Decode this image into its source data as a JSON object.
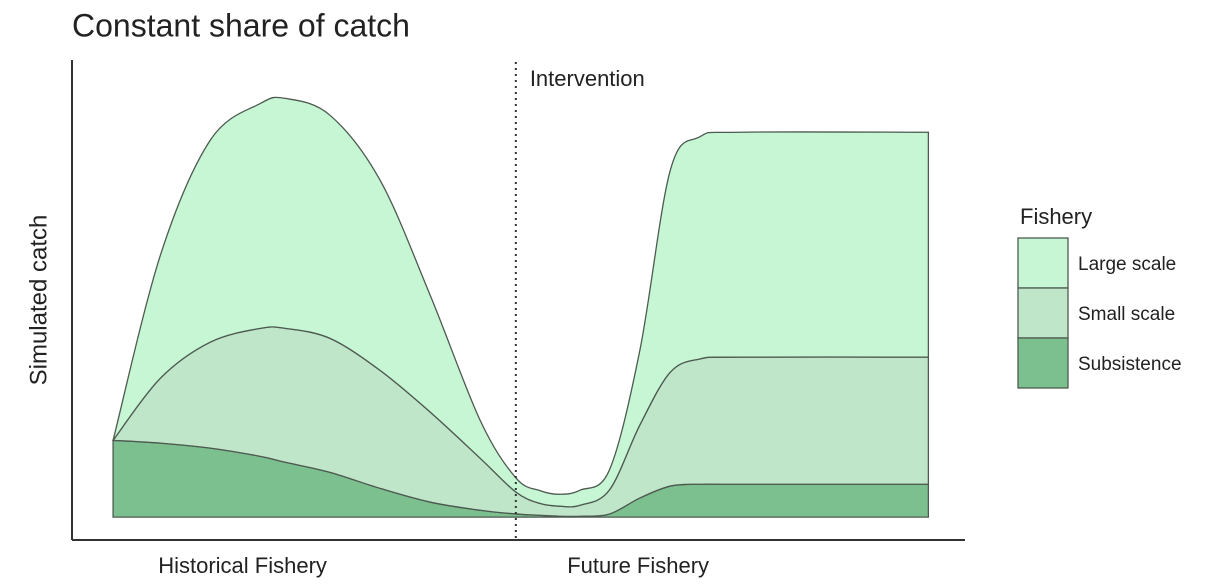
{
  "chart_data": {
    "type": "stacked_area",
    "title": "Constant share of catch",
    "ylabel": "Simulated catch",
    "x": [
      4.6,
      9.9,
      15.5,
      21.1,
      23.9,
      28.9,
      34.5,
      40.1,
      45.7,
      49.7,
      52.4,
      54.6,
      56.9,
      60.2,
      63.6,
      67.0,
      70.3,
      74.8,
      95.9
    ],
    "xlim": [
      0,
      100
    ],
    "xticks": [
      {
        "value": 19.1,
        "label": "Historical Fishery"
      },
      {
        "value": 63.4,
        "label": "Future Fishery"
      }
    ],
    "ylim": [
      -5,
      100
    ],
    "series": [
      {
        "name": "Subsistence",
        "color": "#7cc08f",
        "values": [
          16.8,
          16.2,
          15.1,
          13.3,
          12.0,
          9.8,
          6.3,
          3.3,
          1.5,
          0.7,
          0.4,
          0.2,
          0.2,
          0.7,
          4.2,
          6.8,
          7.2,
          7.2,
          7.2
        ]
      },
      {
        "name": "Small scale",
        "color": "#c0e6ca",
        "values": [
          0,
          14.2,
          23.2,
          28.0,
          29.3,
          29.3,
          25.8,
          19.7,
          11.4,
          4.8,
          2.6,
          2.2,
          2.4,
          5.3,
          16.0,
          24.9,
          27.4,
          27.8,
          27.8
        ]
      },
      {
        "name": "Large scale",
        "color": "#c6f6d4",
        "values": [
          0,
          26.9,
          44.2,
          49.2,
          50.3,
          48.8,
          41.6,
          25.6,
          8.3,
          3.1,
          2.8,
          2.6,
          3.3,
          4.4,
          16.4,
          44.2,
          48.6,
          49.2,
          49.2
        ]
      }
    ],
    "annotations": [
      {
        "x": 49.7,
        "text": "Intervention"
      }
    ],
    "legend": {
      "title": "Fishery",
      "position": "right"
    }
  }
}
